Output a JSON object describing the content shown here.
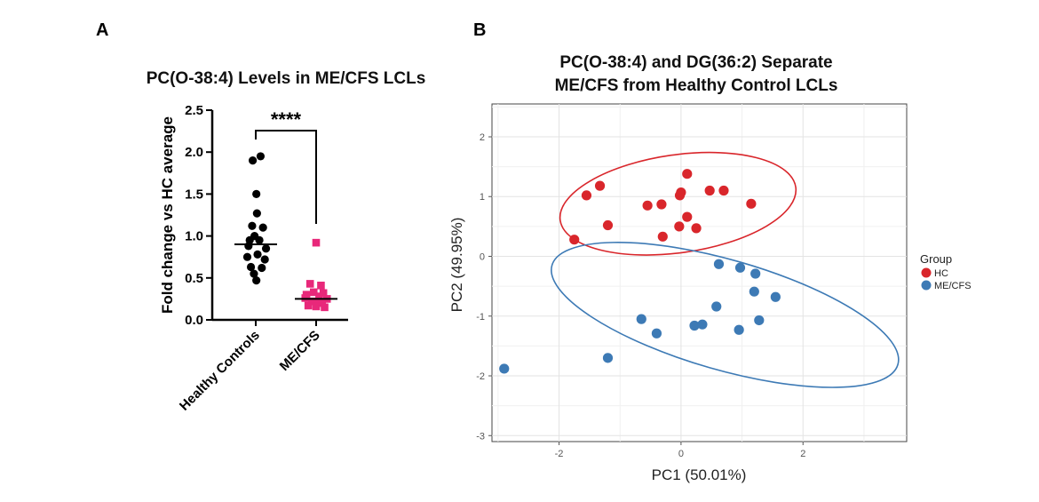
{
  "panel_a": {
    "letter": "A",
    "significance": "****",
    "chart_data": {
      "type": "scatter",
      "title": "PC(O-38:4) Levels in ME/CFS LCLs",
      "ylabel": "Fold change vs HC average",
      "xlabel": "",
      "ylim": [
        0,
        2.5
      ],
      "yticks": [
        "0.0",
        "0.5",
        "1.0",
        "1.5",
        "2.0",
        "2.5"
      ],
      "categories": [
        "Healthy Controls",
        "ME/CFS"
      ],
      "series": [
        {
          "name": "Healthy Controls",
          "color": "#000000",
          "marker": "circle",
          "median": 0.9,
          "points": [
            {
              "dx": -0.05,
              "y": 1.9
            },
            {
              "dx": 0.08,
              "y": 1.95
            },
            {
              "dx": 0.01,
              "y": 1.5
            },
            {
              "dx": 0.02,
              "y": 1.27
            },
            {
              "dx": -0.06,
              "y": 1.12
            },
            {
              "dx": 0.12,
              "y": 1.1
            },
            {
              "dx": -0.02,
              "y": 1.0
            },
            {
              "dx": -0.1,
              "y": 0.95
            },
            {
              "dx": 0.06,
              "y": 0.95
            },
            {
              "dx": -0.12,
              "y": 0.88
            },
            {
              "dx": 0.17,
              "y": 0.85
            },
            {
              "dx": -0.14,
              "y": 0.75
            },
            {
              "dx": 0.03,
              "y": 0.78
            },
            {
              "dx": 0.15,
              "y": 0.72
            },
            {
              "dx": -0.08,
              "y": 0.63
            },
            {
              "dx": 0.1,
              "y": 0.62
            },
            {
              "dx": -0.03,
              "y": 0.55
            },
            {
              "dx": 0.01,
              "y": 0.47
            }
          ]
        },
        {
          "name": "ME/CFS",
          "color": "#e8287a",
          "marker": "square",
          "median": 0.25,
          "points": [
            {
              "dx": 0.0,
              "y": 0.92
            },
            {
              "dx": -0.1,
              "y": 0.43
            },
            {
              "dx": 0.08,
              "y": 0.41
            },
            {
              "dx": -0.04,
              "y": 0.33
            },
            {
              "dx": 0.12,
              "y": 0.32
            },
            {
              "dx": -0.16,
              "y": 0.3
            },
            {
              "dx": 0.05,
              "y": 0.28
            },
            {
              "dx": -0.18,
              "y": 0.26
            },
            {
              "dx": 0.18,
              "y": 0.25
            },
            {
              "dx": -0.07,
              "y": 0.22
            },
            {
              "dx": 0.1,
              "y": 0.2
            },
            {
              "dx": -0.13,
              "y": 0.17
            },
            {
              "dx": 0.0,
              "y": 0.16
            },
            {
              "dx": 0.14,
              "y": 0.15
            },
            {
              "dx": -0.02,
              "y": 0.22
            }
          ]
        }
      ]
    }
  },
  "panel_b": {
    "letter": "B",
    "chart_data": {
      "type": "scatter",
      "title": [
        "PC(O-38:4) and DG(36:2) Separate",
        "ME/CFS from Healthy Control LCLs"
      ],
      "xlabel": "PC1 (50.01%)",
      "ylabel": "PC2 (49.95%)",
      "xlim": [
        -3.1,
        3.7
      ],
      "ylim": [
        -3.1,
        2.55
      ],
      "xticks": [
        -2,
        0,
        2
      ],
      "yticks": [
        2,
        1,
        0,
        -1,
        -2,
        -3
      ],
      "legend_title": "Group",
      "legend_position": "right",
      "series": [
        {
          "name": "HC",
          "color": "#d9262b",
          "points": [
            [
              -1.75,
              0.28
            ],
            [
              -1.55,
              1.02
            ],
            [
              -1.33,
              1.18
            ],
            [
              -1.2,
              0.52
            ],
            [
              -0.55,
              0.85
            ],
            [
              -0.32,
              0.87
            ],
            [
              -0.3,
              0.33
            ],
            [
              -0.03,
              0.5
            ],
            [
              -0.02,
              1.02
            ],
            [
              0.0,
              1.07
            ],
            [
              0.1,
              1.38
            ],
            [
              0.1,
              0.66
            ],
            [
              0.25,
              0.47
            ],
            [
              0.47,
              1.1
            ],
            [
              0.7,
              1.1
            ],
            [
              1.15,
              0.88
            ]
          ],
          "ellipse": {
            "cx": -0.05,
            "cy": 0.88,
            "rx": 1.95,
            "ry": 0.82,
            "angle_deg": -8
          }
        },
        {
          "name": "ME/CFS",
          "color": "#3d7ab5",
          "points": [
            [
              -2.9,
              -1.88
            ],
            [
              -1.2,
              -1.7
            ],
            [
              -0.65,
              -1.05
            ],
            [
              -0.4,
              -1.29
            ],
            [
              0.22,
              -1.16
            ],
            [
              0.35,
              -1.14
            ],
            [
              0.58,
              -0.84
            ],
            [
              0.62,
              -0.13
            ],
            [
              0.95,
              -1.23
            ],
            [
              0.97,
              -0.19
            ],
            [
              1.2,
              -0.59
            ],
            [
              1.22,
              -0.29
            ],
            [
              1.28,
              -1.07
            ],
            [
              1.55,
              -0.68
            ]
          ],
          "ellipse": {
            "cx": 0.72,
            "cy": -0.98,
            "rx": 2.95,
            "ry": 0.92,
            "angle_deg": 16
          }
        }
      ]
    }
  }
}
